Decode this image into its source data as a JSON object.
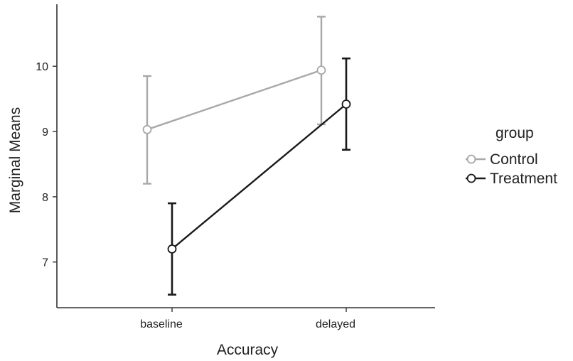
{
  "chart_data": {
    "type": "line",
    "title": "",
    "xlabel": "Accuracy",
    "ylabel": "Marginal Means",
    "categories": [
      "baseline",
      "delayed"
    ],
    "ylim": [
      6.3,
      10.95
    ],
    "yticks": [
      7,
      8,
      9,
      10
    ],
    "grid": false,
    "legend": {
      "title": "group",
      "placement": "right"
    },
    "series": [
      {
        "name": "Control",
        "color": "#a8a8a8",
        "values": [
          9.03,
          9.94
        ],
        "ci_lower": [
          8.2,
          9.11
        ],
        "ci_upper": [
          9.85,
          10.76
        ]
      },
      {
        "name": "Treatment",
        "color": "#1a1a1a",
        "values": [
          7.2,
          9.42
        ],
        "ci_lower": [
          6.5,
          8.72
        ],
        "ci_upper": [
          7.9,
          10.12
        ]
      }
    ]
  }
}
